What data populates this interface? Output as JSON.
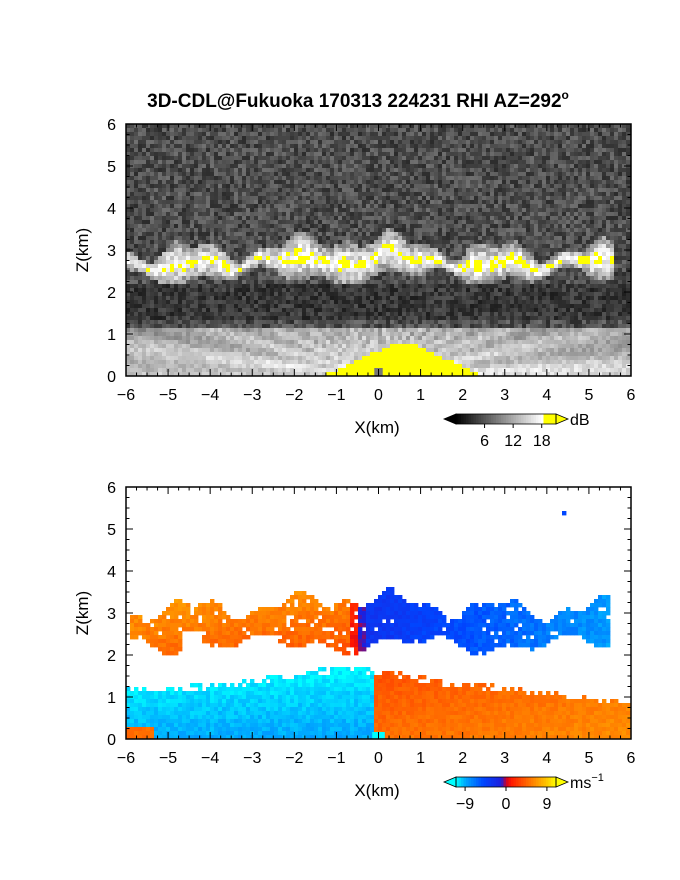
{
  "chart_data": [
    {
      "type": "heatmap",
      "title": "3D-CDL@Fukuoka 170313 224231 RHI AZ=292",
      "title_superscript": "o",
      "xlabel": "X(km)",
      "ylabel": "Z(km)",
      "xlim": [
        -6,
        6
      ],
      "ylim": [
        0,
        6
      ],
      "xticks": [
        -6,
        -5,
        -4,
        -3,
        -2,
        -1,
        0,
        1,
        2,
        3,
        4,
        5,
        6
      ],
      "yticks": [
        0,
        1,
        2,
        3,
        4,
        5,
        6
      ],
      "quantity": "SNR",
      "colorbar": {
        "unit": "dB",
        "ticks": [
          6,
          12,
          18
        ],
        "range": [
          0,
          21
        ],
        "colors": [
          "#000000",
          "#ffffff",
          "#ffff00"
        ]
      },
      "features": {
        "cloud_layer": {
          "x": [
            -6,
            5.6
          ],
          "z_base": [
            2.1,
            2.7
          ],
          "z_top": [
            2.9,
            3.5
          ],
          "level_db": 14
        },
        "boundary_layer": {
          "z_top": 1.1,
          "level_db": 12
        },
        "near_field_saturation": {
          "x": [
            -1.3,
            2.8
          ],
          "z_top": 0.8,
          "level_db": 20
        }
      }
    },
    {
      "type": "heatmap",
      "title": "",
      "xlabel": "X(km)",
      "ylabel": "Z(km)",
      "xlim": [
        -6,
        6
      ],
      "ylim": [
        0,
        6
      ],
      "xticks": [
        -6,
        -5,
        -4,
        -3,
        -2,
        -1,
        0,
        1,
        2,
        3,
        4,
        5,
        6
      ],
      "yticks": [
        0,
        1,
        2,
        3,
        4,
        5,
        6
      ],
      "quantity": "radial velocity",
      "colorbar": {
        "unit": "ms",
        "unit_superscript": "−1",
        "ticks": [
          "−9",
          "0",
          "9"
        ],
        "tick_values": [
          -9,
          0,
          9
        ],
        "range": [
          -11,
          11
        ]
      },
      "features": {
        "cloud_layer": {
          "x": [
            -6,
            5.5
          ],
          "z_range": [
            2.2,
            3.6
          ],
          "velocity_left_ms": 6,
          "velocity_right_ms": -6,
          "sign_change_x": -0.5
        },
        "boundary_layer": {
          "x": [
            -6,
            6
          ],
          "z_top": 1.6,
          "velocity_left_ms": -8,
          "velocity_right_ms": 6,
          "sign_change_x": -0.1
        },
        "isolated_echo": {
          "x": 4.4,
          "z": 5.4,
          "velocity_ms": -5
        }
      }
    }
  ]
}
